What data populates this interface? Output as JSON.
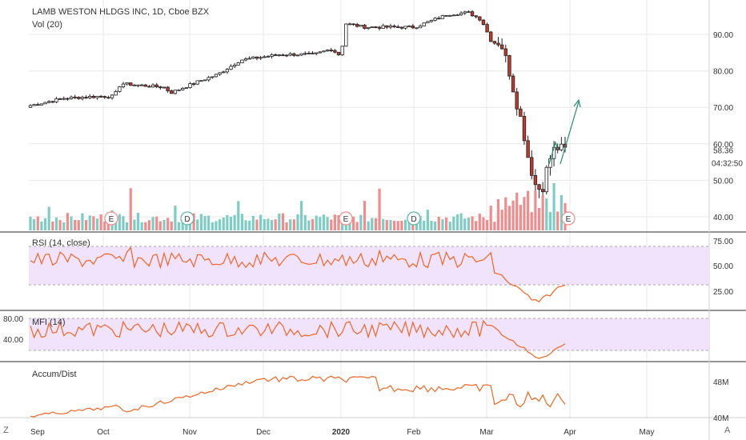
{
  "header": {
    "title": "LAMB WESTON HLDGS INC, 1D, Cboe BZX",
    "volume_label": "Vol (20)"
  },
  "price_axis": {
    "ticks": [
      "90.00",
      "80.00",
      "70.00",
      "60.00",
      "50.00",
      "40.00"
    ],
    "last_price": "58.36",
    "countdown": "04:32:50"
  },
  "rsi": {
    "label": "RSI (14, close)",
    "ticks": [
      "75.00",
      "50.00",
      "25.00"
    ]
  },
  "mfi": {
    "label": "MFI (14)",
    "ticks": [
      "80.00",
      "40.00"
    ]
  },
  "ad": {
    "label": "Accum/Dist",
    "ticks": [
      "48M",
      "40M"
    ]
  },
  "time_axis": {
    "labels": [
      "Sep",
      "Oct",
      "Nov",
      "Dec",
      "2020",
      "Feb",
      "Mar",
      "Apr",
      "May"
    ]
  },
  "markers": [
    {
      "letter": "E",
      "kind": "earnings"
    },
    {
      "letter": "D",
      "kind": "dividend"
    },
    {
      "letter": "E",
      "kind": "earnings"
    },
    {
      "letter": "D",
      "kind": "dividend"
    },
    {
      "letter": "E",
      "kind": "earnings"
    }
  ],
  "corner_left": "Z",
  "corner_right": "A",
  "colors": {
    "up": "#ffffff",
    "down": "#c0392b",
    "vol_up": "#7ecdc4",
    "vol_down": "#f28b8b",
    "indicator_line": "#f26522",
    "band": "#f1e3fb",
    "grid": "#e8e8e8",
    "arrow": "#1f8f6f"
  }
}
